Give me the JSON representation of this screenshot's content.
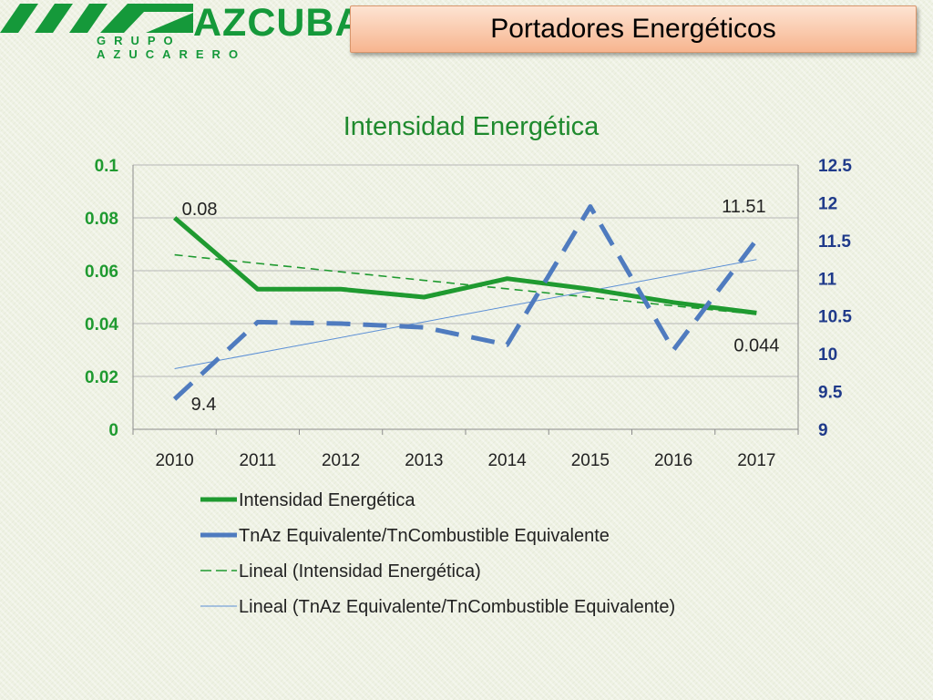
{
  "header": {
    "logo_name": "AZCUBA",
    "logo_subtitle": "GRUPO AZUCARERO",
    "slide_title": "Portadores Energéticos"
  },
  "colors": {
    "green": "#1f9a30",
    "blue": "#4f7bbf",
    "navy": "#1f3a8a",
    "title_green": "#1f8a2e",
    "logo_green": "#15993a"
  },
  "chart_data": {
    "type": "line",
    "title": "Intensidad Energética",
    "categories": [
      "2010",
      "2011",
      "2012",
      "2013",
      "2014",
      "2015",
      "2016",
      "2017"
    ],
    "series": [
      {
        "name": "Intensidad Energética",
        "axis": "left",
        "style": "solid-thick",
        "color": "#1f9a30",
        "values": [
          0.08,
          0.053,
          0.053,
          0.05,
          0.057,
          0.053,
          0.048,
          0.044
        ]
      },
      {
        "name": "TnAz Equivalente/TnCombustible Equivalente",
        "axis": "right",
        "style": "dashed-thick",
        "color": "#4f7bbf",
        "values": [
          9.4,
          10.42,
          10.4,
          10.35,
          10.12,
          11.95,
          10.05,
          11.51
        ]
      }
    ],
    "trendlines": [
      {
        "name": "Lineal (Intensidad Energética)",
        "of": "Intensidad Energética",
        "axis": "left",
        "style": "dashed-thin",
        "color": "#1f9a30"
      },
      {
        "name": "Lineal (TnAz Equivalente/TnCombustible Equivalente)",
        "of": "TnAz Equivalente/TnCombustible Equivalente",
        "axis": "right",
        "style": "solid-thin",
        "color": "#5b8fd6"
      }
    ],
    "y_left": {
      "range": [
        0,
        0.1
      ],
      "ticks": [
        "0",
        "0.02",
        "0.04",
        "0.06",
        "0.08",
        "0.1"
      ]
    },
    "y_right": {
      "range": [
        9,
        12.5
      ],
      "ticks": [
        "9",
        "9.5",
        "10",
        "10.5",
        "11",
        "11.5",
        "12",
        "12.5"
      ]
    },
    "data_labels": [
      {
        "series": 0,
        "index": 0,
        "text": "0.08"
      },
      {
        "series": 0,
        "index": 7,
        "text": "0.044"
      },
      {
        "series": 1,
        "index": 0,
        "text": "9.4"
      },
      {
        "series": 1,
        "index": 7,
        "text": "11.51"
      }
    ],
    "grid": "horizontal",
    "legend_position": "bottom"
  }
}
